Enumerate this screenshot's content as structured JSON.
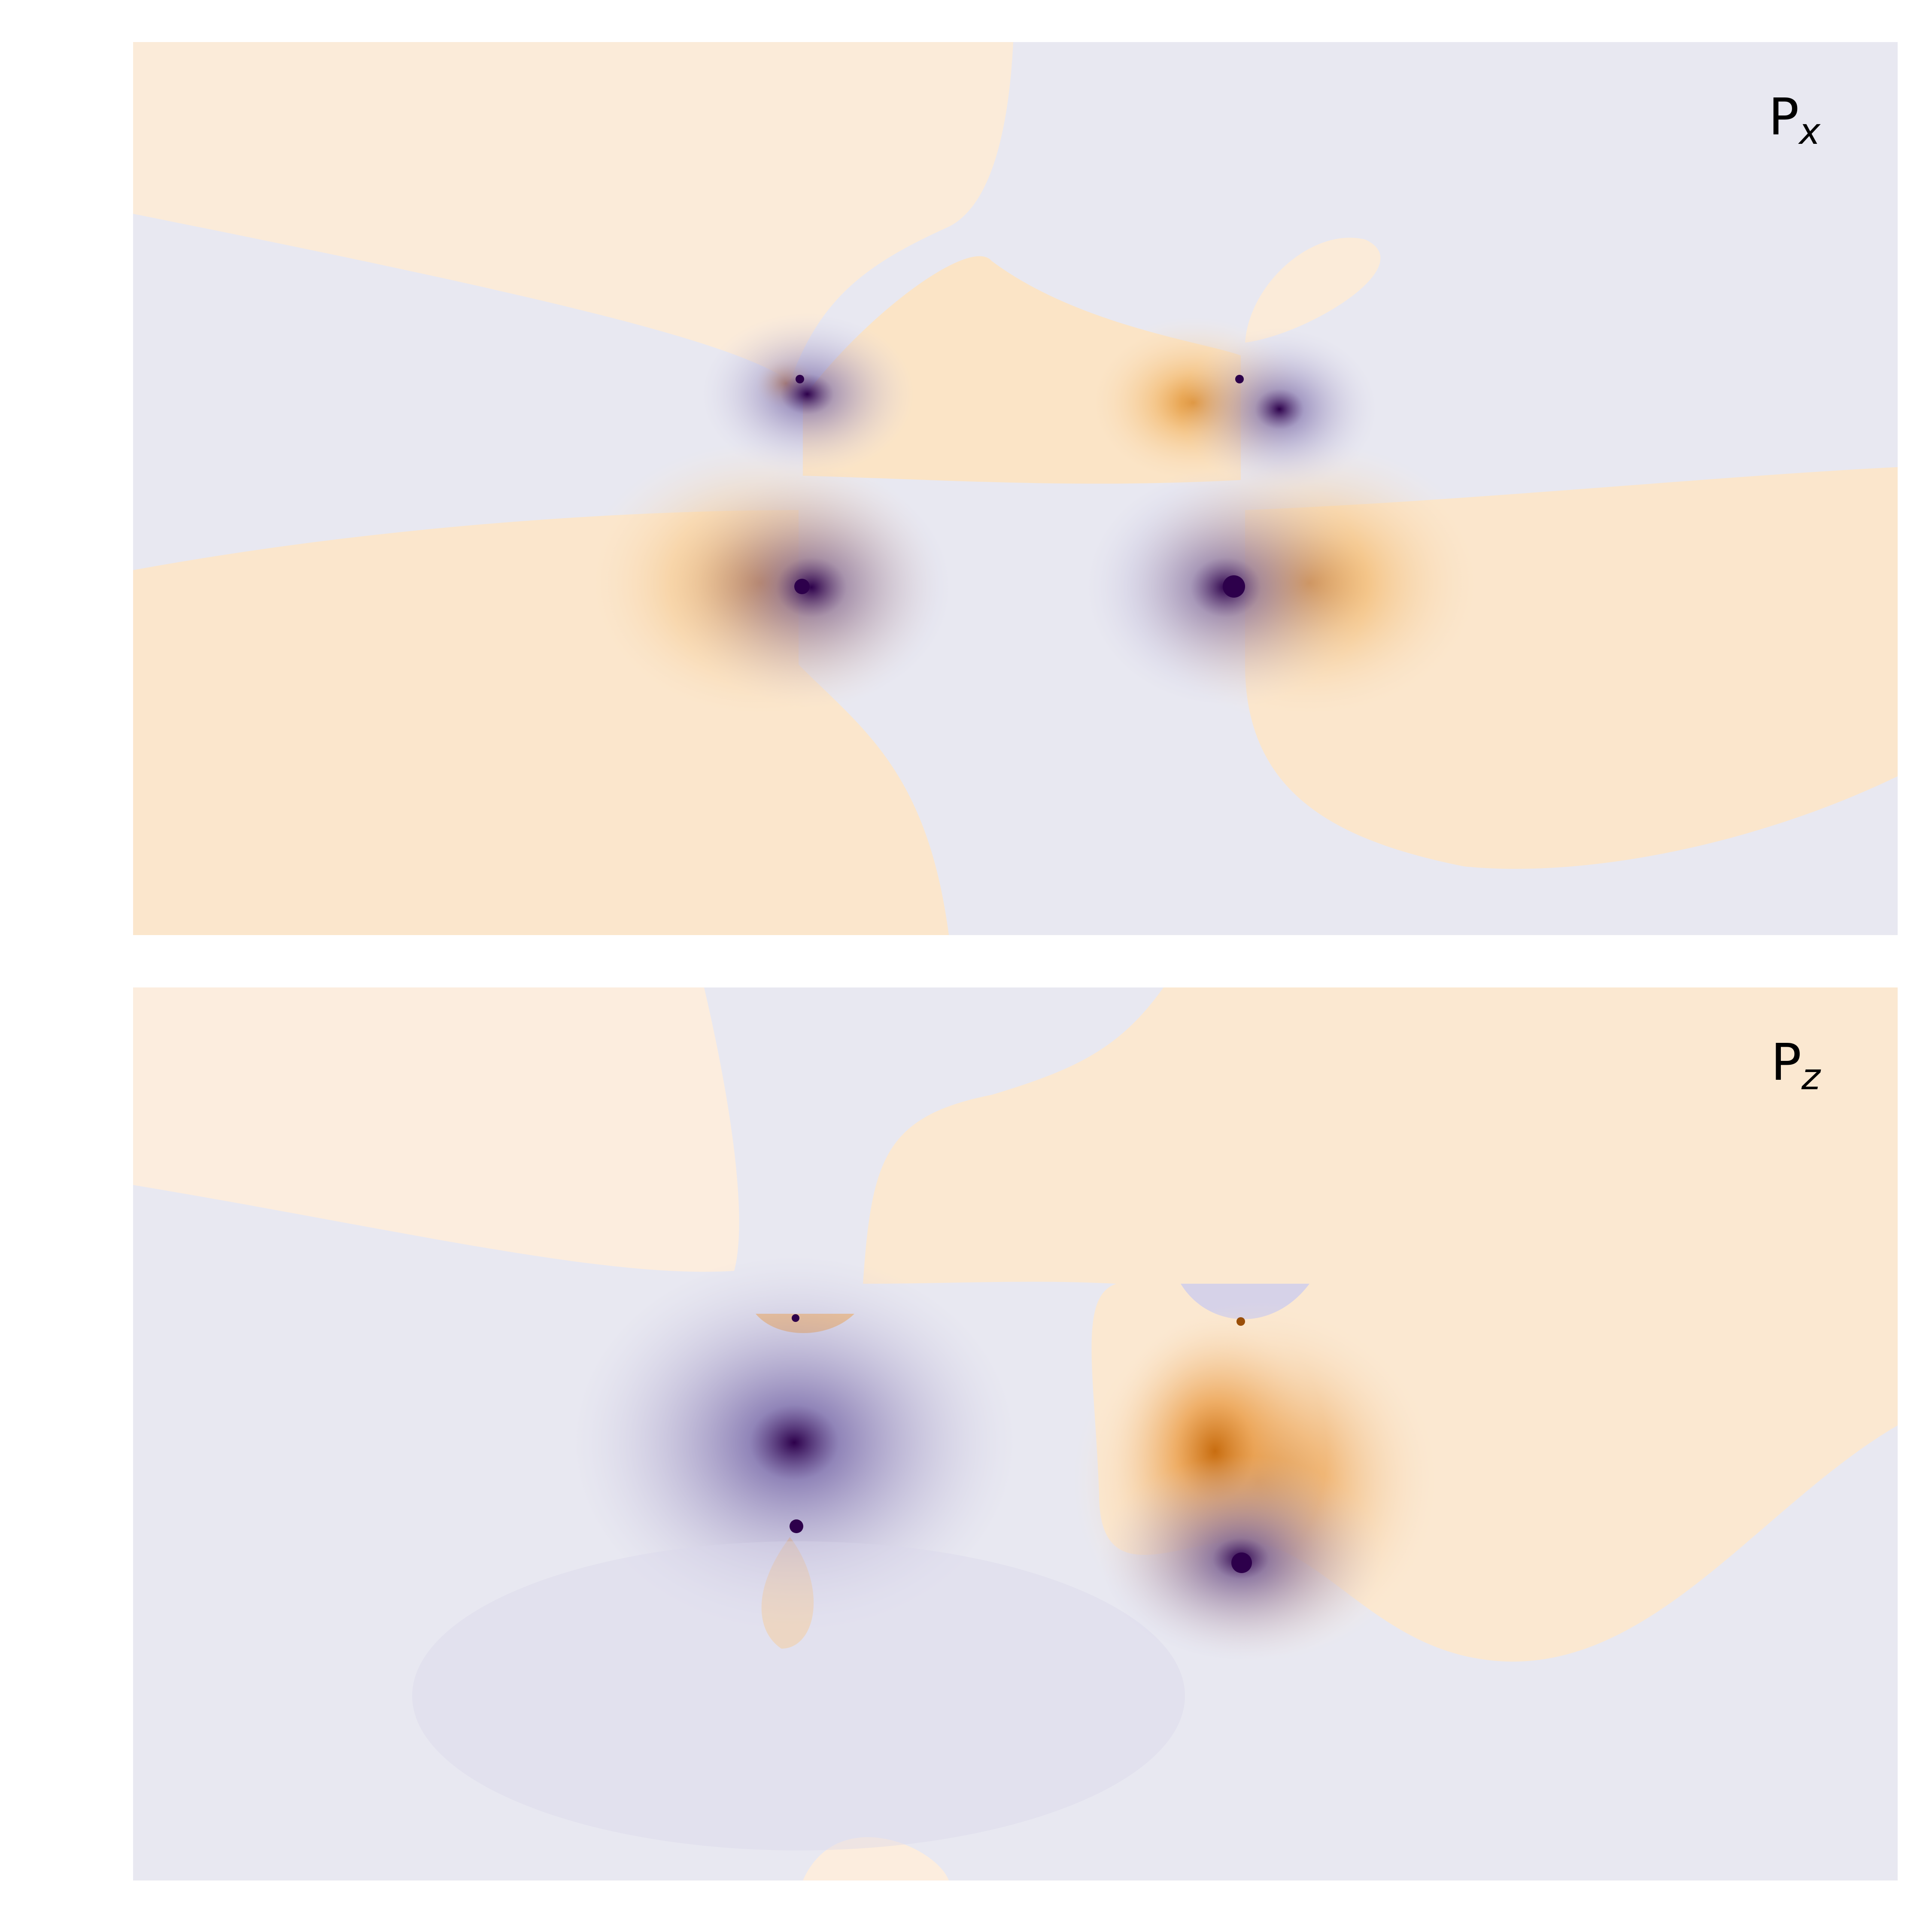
{
  "chart_data": [
    {
      "type": "heatmap",
      "panel_label": {
        "main": "P",
        "sub": "x"
      },
      "colormap": {
        "negative": "#2d004b",
        "neutral": "#f7f7f7",
        "positive": "#b35806"
      },
      "sources": [
        {
          "name": "upper-left",
          "x": 0.378,
          "y": 0.378,
          "negative_lobe": "right",
          "strength": "weak"
        },
        {
          "name": "upper-right",
          "x": 0.627,
          "y": 0.378,
          "negative_lobe": "right",
          "strength": "medium"
        },
        {
          "name": "lower-left",
          "x": 0.378,
          "y": 0.61,
          "negative_lobe": "right",
          "strength": "strong"
        },
        {
          "name": "lower-right",
          "x": 0.627,
          "y": 0.61,
          "negative_lobe": "left",
          "strength": "strong"
        }
      ]
    },
    {
      "type": "heatmap",
      "panel_label": {
        "main": "P",
        "sub": "z"
      },
      "colormap": {
        "negative": "#2d004b",
        "neutral": "#f7f7f7",
        "positive": "#b35806"
      },
      "sources": [
        {
          "name": "upper-left",
          "x": 0.378,
          "y": 0.378,
          "negative_lobe": "above",
          "strength": "weak"
        },
        {
          "name": "upper-right",
          "x": 0.627,
          "y": 0.378,
          "negative_lobe": "above",
          "strength": "weak"
        },
        {
          "name": "lower-left",
          "x": 0.378,
          "y": 0.605,
          "negative_lobe": "above",
          "strength": "strong"
        },
        {
          "name": "lower-right",
          "x": 0.627,
          "y": 0.615,
          "negative_lobe": "below",
          "strength": "strong"
        }
      ]
    }
  ]
}
